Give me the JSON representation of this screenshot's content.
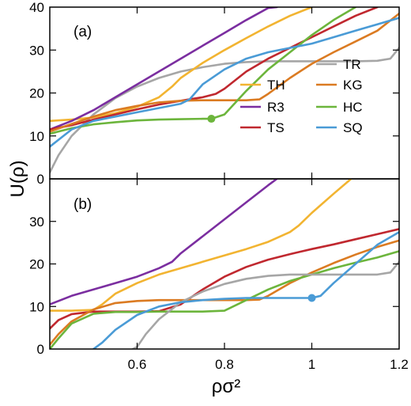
{
  "chart_data": {
    "type": "line",
    "ylabel": "U(ρ)",
    "xlabel": "ρσ²",
    "xlim": [
      0.4,
      1.2
    ],
    "xticks": [
      "0.6",
      "0.8",
      "1",
      "1.2"
    ],
    "xtick_values": [
      0.6,
      0.8,
      1.0,
      1.2
    ],
    "legend_placement": "lower-right of panel (a)",
    "colors": {
      "TH": "#f2b431",
      "R3": "#7b2ea0",
      "TS": "#c0282f",
      "TR": "#a6a6a6",
      "KG": "#db7b22",
      "HC": "#6cb53c",
      "SQ": "#4a9bd6"
    },
    "legend": [
      {
        "name": "TR",
        "color": "#a6a6a6"
      },
      {
        "name": "TH",
        "color": "#f2b431"
      },
      {
        "name": "KG",
        "color": "#db7b22"
      },
      {
        "name": "R3",
        "color": "#7b2ea0"
      },
      {
        "name": "HC",
        "color": "#6cb53c"
      },
      {
        "name": "TS",
        "color": "#c0282f"
      },
      {
        "name": "SQ",
        "color": "#4a9bd6"
      }
    ],
    "panels": [
      {
        "label": "(a)",
        "ylim": [
          0,
          40
        ],
        "yticks": [
          "0",
          "10",
          "20",
          "30",
          "40"
        ],
        "ytick_values": [
          0,
          10,
          20,
          30,
          40
        ],
        "marker": {
          "series": "HC",
          "x": 0.77,
          "y": 14.0
        },
        "series": [
          {
            "name": "TR",
            "x": [
              0.4,
              0.42,
              0.45,
              0.5,
              0.55,
              0.6,
              0.65,
              0.7,
              0.75,
              0.8,
              0.85,
              0.9,
              0.95,
              1.0,
              1.05,
              1.1,
              1.15,
              1.18,
              1.2
            ],
            "y": [
              1.5,
              5.5,
              10.0,
              15.0,
              18.8,
              21.5,
              23.5,
              25.0,
              26.0,
              26.8,
              27.2,
              27.4,
              27.4,
              27.4,
              27.4,
              27.4,
              27.5,
              28.0,
              30.5
            ]
          },
          {
            "name": "TH",
            "x": [
              0.4,
              0.45,
              0.5,
              0.55,
              0.6,
              0.65,
              0.68,
              0.7,
              0.75,
              0.8,
              0.85,
              0.9,
              0.95,
              1.0
            ],
            "y": [
              13.5,
              13.8,
              14.3,
              15.3,
              16.8,
              19.0,
              21.5,
              23.5,
              27.0,
              30.0,
              32.8,
              35.5,
              38.0,
              40.0
            ]
          },
          {
            "name": "R3",
            "x": [
              0.4,
              0.45,
              0.5,
              0.55,
              0.6,
              0.65,
              0.7,
              0.75,
              0.8,
              0.85,
              0.9,
              0.92
            ],
            "y": [
              11.5,
              13.5,
              16.0,
              19.0,
              22.0,
              25.0,
              28.0,
              31.0,
              34.0,
              37.0,
              39.8,
              40.0
            ]
          },
          {
            "name": "TS",
            "x": [
              0.4,
              0.45,
              0.5,
              0.55,
              0.6,
              0.65,
              0.7,
              0.75,
              0.78,
              0.8,
              0.85,
              0.9,
              0.95,
              1.0,
              1.05,
              1.1,
              1.15
            ],
            "y": [
              11.5,
              12.5,
              13.8,
              15.0,
              16.2,
              17.3,
              18.2,
              19.0,
              19.8,
              21.0,
              25.0,
              28.0,
              30.5,
              33.0,
              35.5,
              38.0,
              40.0
            ]
          },
          {
            "name": "KG",
            "x": [
              0.4,
              0.45,
              0.5,
              0.55,
              0.6,
              0.65,
              0.7,
              0.75,
              0.8,
              0.85,
              0.88,
              0.9,
              0.95,
              1.0,
              1.05,
              1.1,
              1.15,
              1.2
            ],
            "y": [
              11.0,
              12.8,
              14.5,
              16.0,
              17.0,
              17.8,
              18.2,
              18.3,
              18.3,
              18.3,
              18.5,
              19.8,
              23.5,
              26.8,
              29.5,
              32.0,
              34.5,
              38.5
            ]
          },
          {
            "name": "HC",
            "x": [
              0.4,
              0.45,
              0.5,
              0.55,
              0.6,
              0.65,
              0.7,
              0.75,
              0.77,
              0.8,
              0.85,
              0.9,
              0.95,
              1.0,
              1.05,
              1.1
            ],
            "y": [
              10.5,
              11.8,
              12.7,
              13.2,
              13.6,
              13.8,
              13.9,
              14.0,
              14.0,
              15.0,
              20.5,
              25.5,
              29.5,
              33.5,
              37.0,
              40.0
            ]
          },
          {
            "name": "SQ",
            "x": [
              0.4,
              0.45,
              0.5,
              0.55,
              0.6,
              0.65,
              0.7,
              0.72,
              0.75,
              0.8,
              0.85,
              0.9,
              0.95,
              1.0,
              1.05,
              1.1,
              1.15,
              1.2
            ],
            "y": [
              7.5,
              11.5,
              13.5,
              14.5,
              15.5,
              16.5,
              17.5,
              18.5,
              22.0,
              25.5,
              28.0,
              29.5,
              30.5,
              31.5,
              33.0,
              34.5,
              36.0,
              37.5
            ]
          }
        ]
      },
      {
        "label": "(b)",
        "ylim": [
          0,
          40
        ],
        "yticks": [
          "0",
          "10",
          "20",
          "30"
        ],
        "ytick_values": [
          0,
          10,
          20,
          30
        ],
        "marker": {
          "series": "SQ",
          "x": 1.0,
          "y": 12.0
        },
        "series": [
          {
            "name": "R3",
            "x": [
              0.4,
              0.45,
              0.5,
              0.55,
              0.6,
              0.65,
              0.68,
              0.7,
              0.75,
              0.8,
              0.85,
              0.9,
              0.92
            ],
            "y": [
              10.5,
              12.5,
              14.0,
              15.5,
              17.0,
              19.0,
              20.5,
              22.5,
              26.5,
              30.5,
              34.5,
              38.5,
              40.0
            ]
          },
          {
            "name": "TH",
            "x": [
              0.4,
              0.45,
              0.5,
              0.52,
              0.55,
              0.6,
              0.65,
              0.7,
              0.75,
              0.8,
              0.85,
              0.9,
              0.95,
              0.97,
              1.0,
              1.05,
              1.09
            ],
            "y": [
              9.0,
              9.0,
              9.2,
              10.5,
              13.0,
              15.5,
              17.5,
              19.0,
              20.5,
              22.0,
              23.5,
              25.2,
              27.5,
              29.0,
              32.0,
              36.5,
              40.0
            ]
          },
          {
            "name": "TS",
            "x": [
              0.4,
              0.42,
              0.45,
              0.5,
              0.55,
              0.6,
              0.65,
              0.7,
              0.75,
              0.8,
              0.85,
              0.9,
              0.95,
              1.0,
              1.05,
              1.1,
              1.15,
              1.2
            ],
            "y": [
              4.8,
              6.8,
              8.2,
              8.8,
              8.8,
              8.8,
              8.9,
              10.5,
              14.0,
              17.0,
              19.3,
              21.0,
              22.3,
              23.5,
              24.6,
              25.8,
              27.0,
              28.2
            ]
          },
          {
            "name": "KG",
            "x": [
              0.4,
              0.42,
              0.45,
              0.5,
              0.55,
              0.6,
              0.65,
              0.7,
              0.75,
              0.8,
              0.85,
              0.88,
              0.9,
              0.95,
              1.0,
              1.05,
              1.1,
              1.15,
              1.2
            ],
            "y": [
              1.0,
              3.5,
              6.5,
              9.3,
              10.8,
              11.3,
              11.5,
              11.5,
              11.5,
              11.5,
              11.5,
              11.6,
              12.5,
              15.5,
              18.0,
              20.2,
              22.2,
              24.0,
              25.5
            ]
          },
          {
            "name": "HC",
            "x": [
              0.4,
              0.42,
              0.45,
              0.5,
              0.55,
              0.6,
              0.65,
              0.7,
              0.75,
              0.8,
              0.85,
              0.9,
              0.95,
              1.0,
              1.05,
              1.1,
              1.15,
              1.2
            ],
            "y": [
              0.0,
              2.5,
              6.0,
              8.3,
              8.7,
              8.7,
              8.8,
              8.8,
              8.8,
              9.0,
              11.5,
              14.0,
              16.0,
              17.5,
              19.0,
              20.3,
              21.5,
              23.0
            ]
          },
          {
            "name": "TR",
            "x": [
              0.59,
              0.6,
              0.62,
              0.65,
              0.7,
              0.75,
              0.8,
              0.85,
              0.9,
              0.95,
              1.0,
              1.05,
              1.1,
              1.15,
              1.18,
              1.2
            ],
            "y": [
              0.0,
              0.5,
              3.5,
              7.0,
              11.0,
              13.5,
              15.3,
              16.5,
              17.2,
              17.5,
              17.5,
              17.5,
              17.5,
              17.5,
              18.0,
              20.5
            ]
          },
          {
            "name": "SQ",
            "x": [
              0.5,
              0.52,
              0.55,
              0.6,
              0.65,
              0.7,
              0.75,
              0.8,
              0.85,
              0.9,
              0.95,
              1.0,
              1.02,
              1.05,
              1.1,
              1.15,
              1.2
            ],
            "y": [
              0.0,
              1.5,
              4.5,
              8.0,
              10.0,
              11.0,
              11.5,
              11.8,
              12.0,
              12.0,
              12.0,
              12.0,
              12.5,
              15.5,
              20.0,
              24.5,
              27.5
            ]
          }
        ]
      }
    ]
  }
}
